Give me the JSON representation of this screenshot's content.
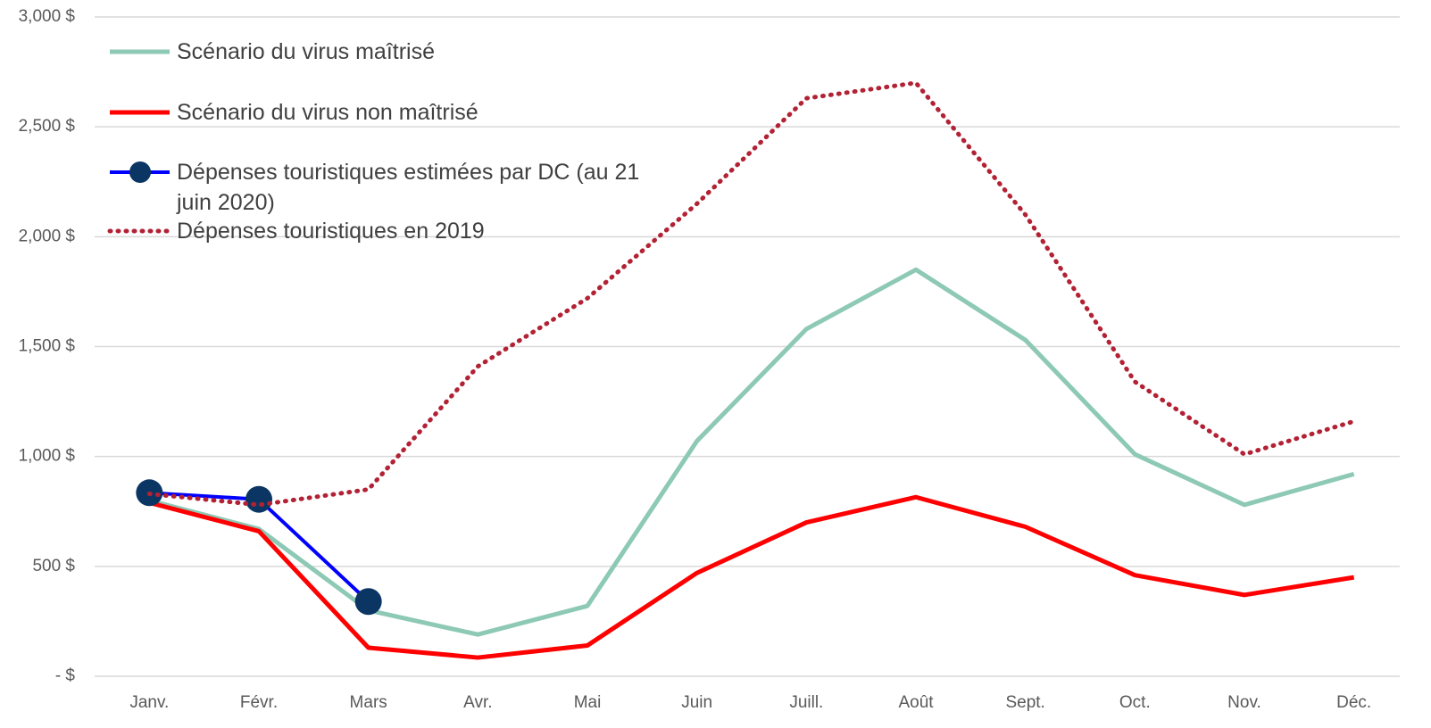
{
  "chart_data": {
    "type": "line",
    "categories": [
      "Janv.",
      "Févr.",
      "Mars",
      "Avr.",
      "Mai",
      "Juin",
      "Juill.",
      "Août",
      "Sept.",
      "Oct.",
      "Nov.",
      "Déc."
    ],
    "series": [
      {
        "name": "Scénario du virus maîtrisé",
        "color": "#8dc9b5",
        "values": [
          800,
          670,
          300,
          190,
          320,
          1070,
          1580,
          1850,
          1530,
          1010,
          780,
          920
        ]
      },
      {
        "name": "Scénario du virus non maîtrisé",
        "color": "#ff0000",
        "values": [
          790,
          660,
          130,
          85,
          140,
          470,
          700,
          815,
          680,
          460,
          370,
          450
        ]
      },
      {
        "name": "Dépenses touristiques estimées par DC (au 21 juin 2020)",
        "color": "#0000ff",
        "marker": "circle",
        "marker_color": "#0b3563",
        "values": [
          835,
          805,
          340,
          null,
          null,
          null,
          null,
          null,
          null,
          null,
          null,
          null
        ]
      },
      {
        "name": "Dépenses touristiques en 2019",
        "color": "#b22234",
        "style": "dotted",
        "values": [
          830,
          780,
          850,
          1410,
          1720,
          2150,
          2630,
          2700,
          2100,
          1340,
          1010,
          1160
        ]
      }
    ],
    "ylim": [
      0,
      3000
    ],
    "yticks": [
      {
        "value": 0,
        "label": "-  $"
      },
      {
        "value": 500,
        "label": "500 $"
      },
      {
        "value": 1000,
        "label": "1,000 $"
      },
      {
        "value": 1500,
        "label": "1,500 $"
      },
      {
        "value": 2000,
        "label": "2,000 $"
      },
      {
        "value": 2500,
        "label": "2,500 $"
      },
      {
        "value": 3000,
        "label": "3,000 $"
      }
    ],
    "grid": true,
    "legend": "top-left"
  }
}
